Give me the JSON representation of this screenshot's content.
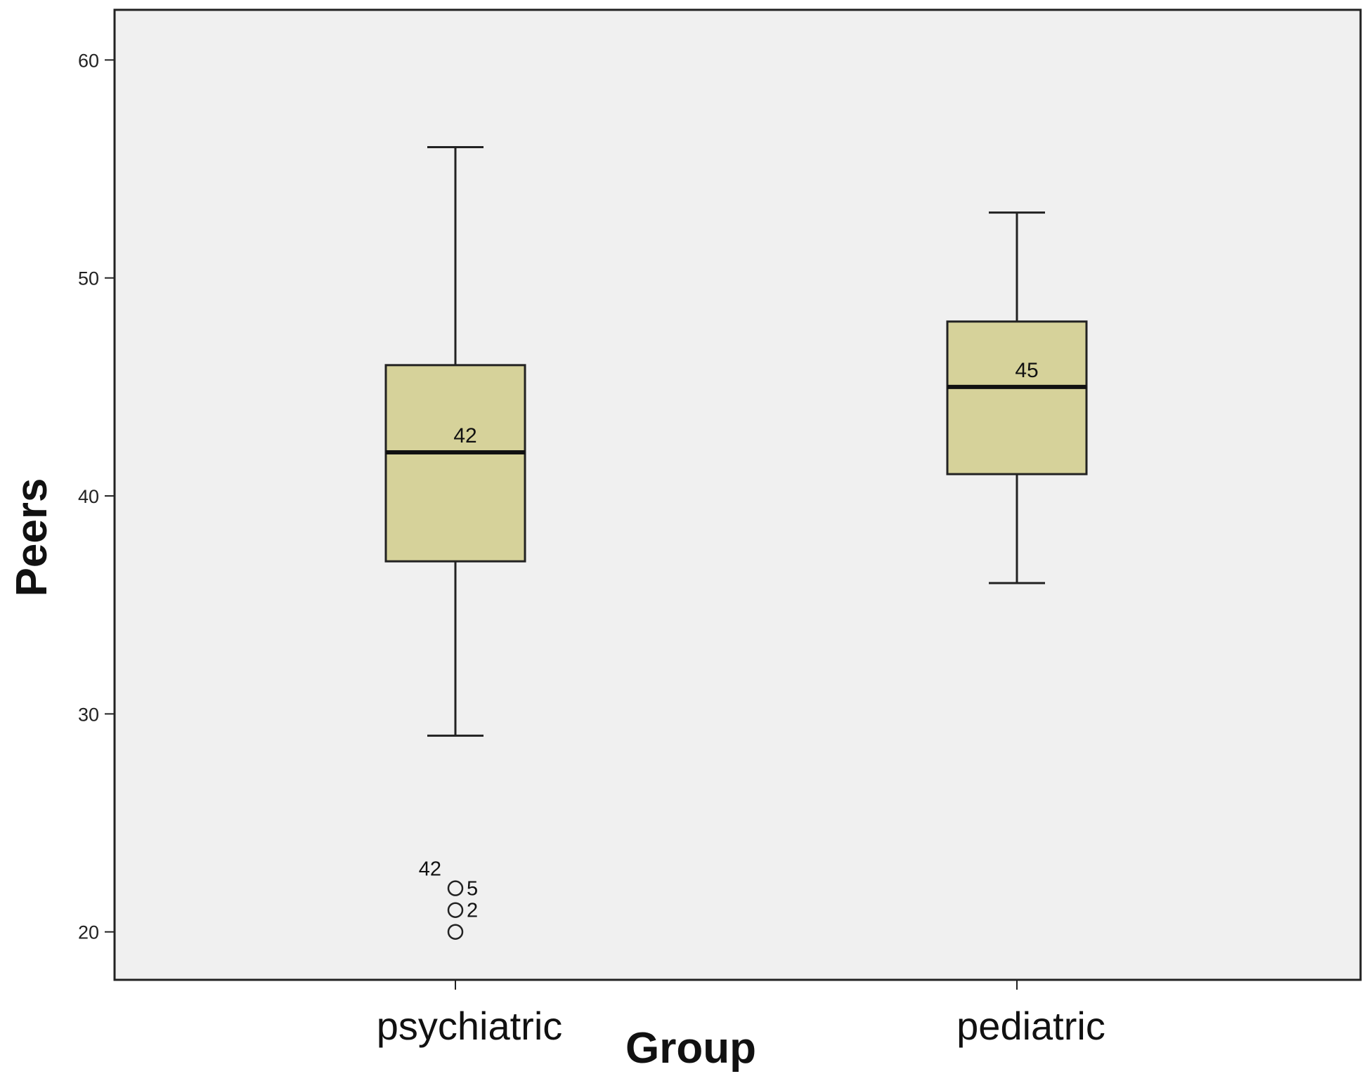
{
  "chart_data": {
    "type": "boxplot",
    "xlabel": "Group",
    "ylabel": "Peers",
    "ylim": [
      17.8,
      62.3
    ],
    "yticks": [
      20,
      30,
      40,
      50,
      60
    ],
    "grid": false,
    "legend": "none",
    "colors": {
      "plot_background": "#f0f0f0",
      "box_fill": "#d6d29a",
      "stroke": "#222222"
    },
    "categories": [
      "psychiatric",
      "pediatric"
    ],
    "boxes": [
      {
        "category": "psychiatric",
        "whisker_low": 29,
        "q1": 37,
        "median": 42,
        "q3": 46,
        "whisker_high": 56,
        "median_label": "42",
        "outliers": [
          {
            "value": 22,
            "label": "5"
          },
          {
            "value": 22,
            "label": "42"
          },
          {
            "value": 21,
            "label": "2"
          },
          {
            "value": 20,
            "label": ""
          }
        ]
      },
      {
        "category": "pediatric",
        "whisker_low": 36,
        "q1": 41,
        "median": 45,
        "q3": 48,
        "whisker_high": 53,
        "median_label": "45",
        "outliers": []
      }
    ]
  }
}
